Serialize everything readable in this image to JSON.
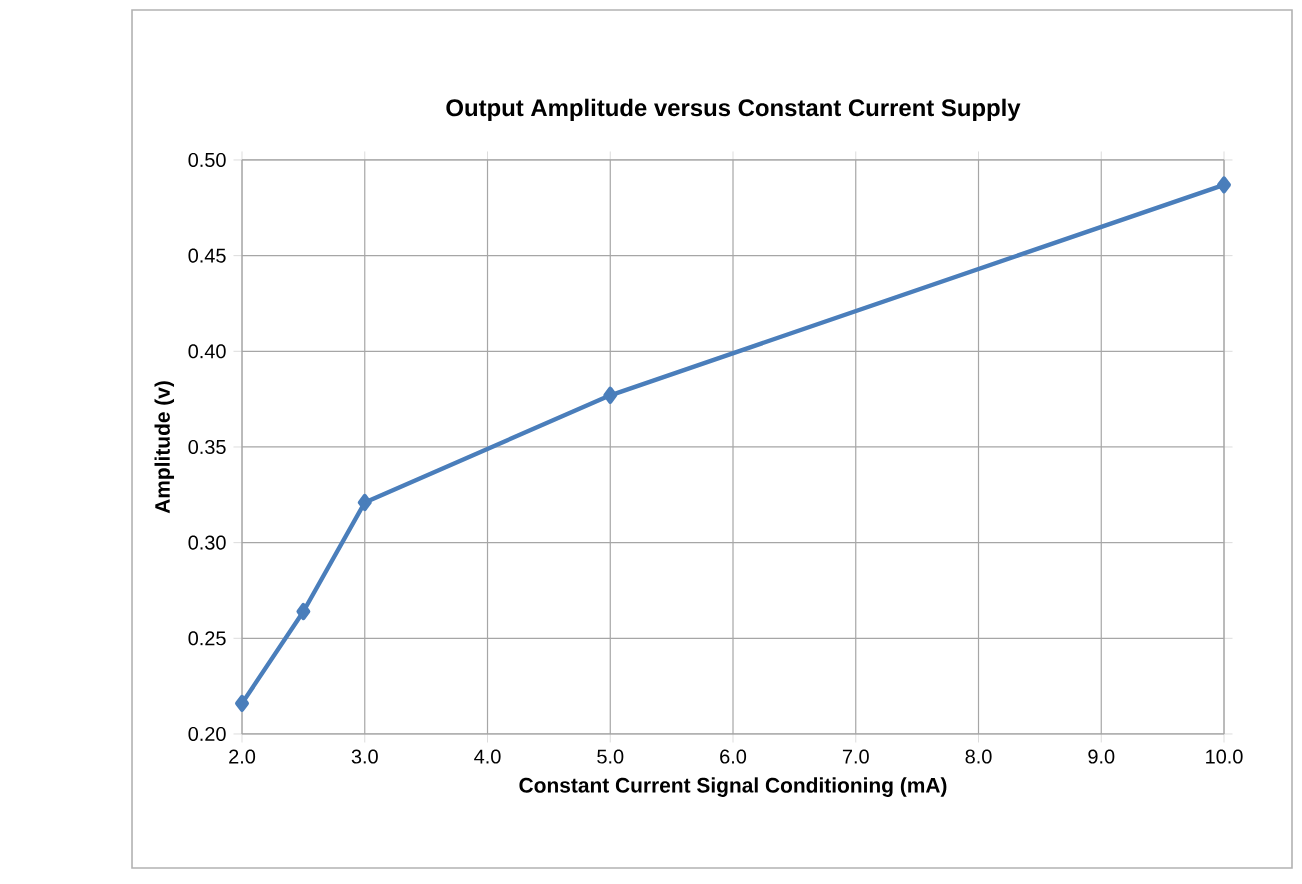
{
  "chart_data": {
    "type": "line",
    "title": "Output Amplitude versus Constant Current Supply",
    "xlabel": "Constant Current Signal Conditioning (mA)",
    "ylabel": "Amplitude (v)",
    "x": [
      2.0,
      2.5,
      3.0,
      5.0,
      10.0
    ],
    "series": [
      {
        "color": "#4a7ebb",
        "values": [
          0.216,
          0.264,
          0.321,
          0.377,
          0.487
        ]
      }
    ],
    "xlim": [
      2.0,
      10.0
    ],
    "ylim": [
      0.2,
      0.5
    ],
    "xticks": [
      {
        "value": 2,
        "label": "2.0"
      },
      {
        "value": 3,
        "label": "3.0"
      },
      {
        "value": 4,
        "label": "4.0"
      },
      {
        "value": 5,
        "label": "5.0"
      },
      {
        "value": 6,
        "label": "6.0"
      },
      {
        "value": 7,
        "label": "7.0"
      },
      {
        "value": 8,
        "label": "8.0"
      },
      {
        "value": 9,
        "label": "9.0"
      },
      {
        "value": 10,
        "label": "10.0"
      }
    ],
    "yticks": [
      {
        "value": 0.2,
        "label": "0.20"
      },
      {
        "value": 0.25,
        "label": "0.25"
      },
      {
        "value": 0.3,
        "label": "0.30"
      },
      {
        "value": 0.35,
        "label": "0.35"
      },
      {
        "value": 0.4,
        "label": "0.40"
      },
      {
        "value": 0.45,
        "label": "0.45"
      },
      {
        "value": 0.5,
        "label": "0.50"
      }
    ],
    "grid": true,
    "marker": "diamond",
    "line_style": "solid"
  }
}
